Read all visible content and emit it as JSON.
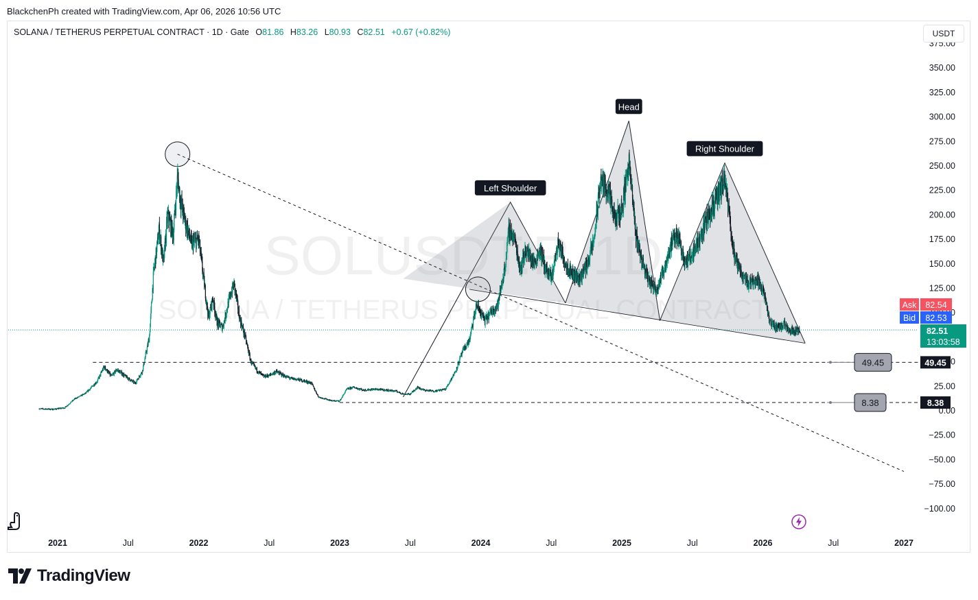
{
  "credit": "BlackchenPh created with TradingView.com, Apr 06, 2026 10:56 UTC",
  "currency": "USDT",
  "legend": {
    "symbol": "SOLANA / TETHERUS PERPETUAL CONTRACT · 1D · Gate",
    "o_label": "O",
    "o_value": "81.86",
    "h_label": "H",
    "h_value": "83.26",
    "l_label": "L",
    "l_value": "80.93",
    "c_label": "C",
    "c_value": "82.51",
    "change": "+0.67 (+0.82%)"
  },
  "watermark": {
    "line1": "SOLUSDT.P, 1D",
    "line2": "SOLANA / TETHERUS PERPETUAL CONTRACT"
  },
  "brand": "TradingView",
  "icons": {
    "brand": "tradingview-logo-icon",
    "dino": "dino-icon",
    "flash": "lightning-icon"
  },
  "colors": {
    "up": "#089981",
    "down": "#131722",
    "ask": "#f7525f",
    "bid": "#2962ff",
    "price": "#089981"
  },
  "chart_data": {
    "type": "line",
    "scale": "linear",
    "ylim": [
      -110,
      375
    ],
    "y_ticks": [
      "−100.00",
      "−75.00",
      "−50.00",
      "−25.00",
      "0.00",
      "25.00",
      "50.00",
      "75.00",
      "100.00",
      "125.00",
      "150.00",
      "175.00",
      "200.00",
      "225.00",
      "250.00",
      "275.00",
      "300.00",
      "325.00",
      "350.00",
      "375.00"
    ],
    "y_tick_values": [
      -100,
      -75,
      -50,
      -25,
      0,
      25,
      50,
      75,
      100,
      125,
      150,
      175,
      200,
      225,
      250,
      275,
      300,
      325,
      350,
      375
    ],
    "x_ticks": [
      {
        "label": "2021",
        "t": 2021.0
      },
      {
        "label": "Jul",
        "t": 2021.5
      },
      {
        "label": "2022",
        "t": 2022.0
      },
      {
        "label": "Jul",
        "t": 2022.5
      },
      {
        "label": "2023",
        "t": 2023.0
      },
      {
        "label": "Jul",
        "t": 2023.5
      },
      {
        "label": "2024",
        "t": 2024.0
      },
      {
        "label": "Jul",
        "t": 2024.5
      },
      {
        "label": "2025",
        "t": 2025.0
      },
      {
        "label": "Jul",
        "t": 2025.5
      },
      {
        "label": "2026",
        "t": 2026.0
      },
      {
        "label": "Jul",
        "t": 2026.5
      },
      {
        "label": "2027",
        "t": 2027.0
      }
    ],
    "xlim": [
      2020.9,
      2027.15
    ],
    "series": [
      {
        "type": "candlestick",
        "points": [
          [
            2020.87,
            2
          ],
          [
            2020.97,
            1.5
          ],
          [
            2021.05,
            3
          ],
          [
            2021.12,
            12
          ],
          [
            2021.2,
            18
          ],
          [
            2021.28,
            30
          ],
          [
            2021.33,
            45
          ],
          [
            2021.38,
            35
          ],
          [
            2021.42,
            42
          ],
          [
            2021.5,
            33
          ],
          [
            2021.55,
            28
          ],
          [
            2021.6,
            40
          ],
          [
            2021.65,
            75
          ],
          [
            2021.68,
            140
          ],
          [
            2021.72,
            185
          ],
          [
            2021.75,
            150
          ],
          [
            2021.78,
            200
          ],
          [
            2021.82,
            180
          ],
          [
            2021.85,
            240
          ],
          [
            2021.87,
            215
          ],
          [
            2021.9,
            195
          ],
          [
            2021.95,
            170
          ],
          [
            2022.0,
            175
          ],
          [
            2022.03,
            140
          ],
          [
            2022.07,
            95
          ],
          [
            2022.1,
            115
          ],
          [
            2022.13,
            90
          ],
          [
            2022.17,
            85
          ],
          [
            2022.21,
            110
          ],
          [
            2022.25,
            130
          ],
          [
            2022.29,
            95
          ],
          [
            2022.33,
            75
          ],
          [
            2022.37,
            50
          ],
          [
            2022.42,
            40
          ],
          [
            2022.46,
            35
          ],
          [
            2022.5,
            36
          ],
          [
            2022.55,
            40
          ],
          [
            2022.6,
            36
          ],
          [
            2022.65,
            33
          ],
          [
            2022.7,
            32
          ],
          [
            2022.76,
            30
          ],
          [
            2022.8,
            28
          ],
          [
            2022.85,
            14
          ],
          [
            2022.9,
            12
          ],
          [
            2022.95,
            10
          ],
          [
            2023.0,
            10
          ],
          [
            2023.05,
            22
          ],
          [
            2023.1,
            24
          ],
          [
            2023.17,
            21
          ],
          [
            2023.25,
            22
          ],
          [
            2023.33,
            21
          ],
          [
            2023.4,
            20
          ],
          [
            2023.45,
            17
          ],
          [
            2023.5,
            17
          ],
          [
            2023.55,
            24
          ],
          [
            2023.6,
            21
          ],
          [
            2023.67,
            20
          ],
          [
            2023.75,
            22
          ],
          [
            2023.82,
            40
          ],
          [
            2023.87,
            60
          ],
          [
            2023.92,
            72
          ],
          [
            2023.97,
            108
          ],
          [
            2024.03,
            92
          ],
          [
            2024.08,
            102
          ],
          [
            2024.12,
            108
          ],
          [
            2024.17,
            145
          ],
          [
            2024.2,
            185
          ],
          [
            2024.24,
            175
          ],
          [
            2024.28,
            145
          ],
          [
            2024.32,
            165
          ],
          [
            2024.38,
            150
          ],
          [
            2024.42,
            165
          ],
          [
            2024.46,
            145
          ],
          [
            2024.5,
            135
          ],
          [
            2024.55,
            172
          ],
          [
            2024.6,
            150
          ],
          [
            2024.65,
            140
          ],
          [
            2024.7,
            135
          ],
          [
            2024.75,
            148
          ],
          [
            2024.8,
            172
          ],
          [
            2024.85,
            235
          ],
          [
            2024.9,
            225
          ],
          [
            2024.95,
            195
          ],
          [
            2025.0,
            205
          ],
          [
            2025.05,
            255
          ],
          [
            2025.1,
            180
          ],
          [
            2025.15,
            150
          ],
          [
            2025.2,
            130
          ],
          [
            2025.25,
            125
          ],
          [
            2025.3,
            145
          ],
          [
            2025.35,
            170
          ],
          [
            2025.4,
            180
          ],
          [
            2025.45,
            150
          ],
          [
            2025.5,
            160
          ],
          [
            2025.55,
            175
          ],
          [
            2025.6,
            195
          ],
          [
            2025.65,
            210
          ],
          [
            2025.7,
            225
          ],
          [
            2025.73,
            235
          ],
          [
            2025.77,
            190
          ],
          [
            2025.8,
            155
          ],
          [
            2025.85,
            140
          ],
          [
            2025.9,
            130
          ],
          [
            2025.95,
            135
          ],
          [
            2026.0,
            125
          ],
          [
            2026.05,
            90
          ],
          [
            2026.1,
            85
          ],
          [
            2026.15,
            88
          ],
          [
            2026.2,
            82
          ],
          [
            2026.26,
            82.51
          ]
        ]
      }
    ],
    "last_price": 82.51,
    "last_price_label": "82.51",
    "countdown": "13:03:58",
    "ask": {
      "label": "Ask",
      "value": "82.54"
    },
    "bid": {
      "label": "Bid",
      "value": "82.53"
    },
    "annotations": [
      {
        "kind": "label",
        "text": "Left Shoulder",
        "t": 2024.21,
        "y": 213
      },
      {
        "kind": "label",
        "text": "Head",
        "t": 2025.05,
        "y": 296
      },
      {
        "kind": "label",
        "text": "Right Shoulder",
        "t": 2025.73,
        "y": 253
      },
      {
        "kind": "level",
        "value": 49.45,
        "label": "49.45",
        "axis_label": "49.45",
        "t_start": 2021.25
      },
      {
        "kind": "level",
        "value": 8.38,
        "label": "8.38",
        "axis_label": "8.38",
        "t_start": 2023.0
      }
    ],
    "pattern": {
      "left": [
        [
          2023.45,
          14
        ],
        [
          2024.21,
          213
        ],
        [
          2024.6,
          110
        ]
      ],
      "head": [
        [
          2024.6,
          110
        ],
        [
          2025.05,
          296
        ],
        [
          2025.27,
          92
        ]
      ],
      "right": [
        [
          2025.27,
          92
        ],
        [
          2025.73,
          253
        ],
        [
          2026.3,
          69
        ]
      ],
      "neckline": [
        [
          2023.92,
          124
        ],
        [
          2026.3,
          69
        ]
      ]
    },
    "trendline": {
      "from": [
        2021.85,
        262
      ],
      "to": [
        2027.0,
        -62
      ]
    },
    "circles": [
      [
        2021.85,
        262
      ],
      [
        2023.98,
        124
      ]
    ],
    "grid": false
  }
}
